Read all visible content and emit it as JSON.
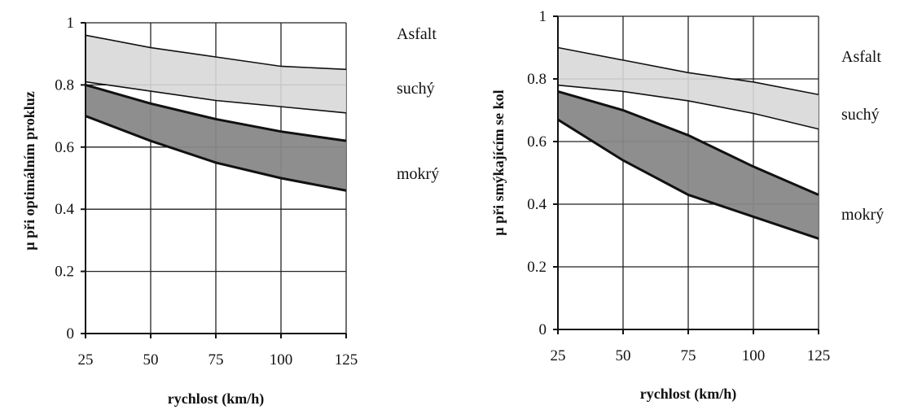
{
  "chart_data": [
    {
      "type": "area",
      "title": "",
      "xlabel": "rychlost  (km/h)",
      "ylabel": "µ  při optimálním prokluz",
      "xlim": [
        25,
        125
      ],
      "ylim": [
        0,
        1
      ],
      "x_ticks": [
        "25",
        "50",
        "75",
        "100",
        "125"
      ],
      "y_ticks": [
        "0",
        "0.2",
        "0.4",
        "0.6",
        "0.8",
        "1"
      ],
      "grid": true,
      "labels": {
        "surface": "Asfalt",
        "dry": "suchý",
        "wet": "mokrý"
      },
      "x": [
        25,
        50,
        75,
        100,
        125
      ],
      "bands": [
        {
          "name": "suchý",
          "color": "#d8d8d8",
          "upper": [
            0.96,
            0.92,
            0.89,
            0.86,
            0.85
          ],
          "lower": [
            0.81,
            0.78,
            0.75,
            0.73,
            0.71
          ]
        },
        {
          "name": "mokrý",
          "color": "#888888",
          "upper": [
            0.8,
            0.74,
            0.69,
            0.65,
            0.62
          ],
          "lower": [
            0.7,
            0.62,
            0.55,
            0.5,
            0.46
          ]
        }
      ]
    },
    {
      "type": "area",
      "title": "",
      "xlabel": "rychlost  (km/h)",
      "ylabel": "µ  při smýkajícím se kol",
      "xlim": [
        25,
        125
      ],
      "ylim": [
        0,
        1
      ],
      "x_ticks": [
        "25",
        "50",
        "75",
        "100",
        "125"
      ],
      "y_ticks": [
        "0",
        "0.2",
        "0.4",
        "0.6",
        "0.8",
        "1"
      ],
      "grid": true,
      "labels": {
        "surface": "Asfalt",
        "dry": "suchý",
        "wet": "mokrý"
      },
      "x": [
        25,
        50,
        75,
        100,
        125
      ],
      "bands": [
        {
          "name": "suchý",
          "color": "#d8d8d8",
          "upper": [
            0.9,
            0.86,
            0.82,
            0.79,
            0.75
          ],
          "lower": [
            0.78,
            0.76,
            0.73,
            0.69,
            0.64
          ]
        },
        {
          "name": "mokrý",
          "color": "#888888",
          "upper": [
            0.76,
            0.7,
            0.62,
            0.52,
            0.43
          ],
          "lower": [
            0.67,
            0.54,
            0.43,
            0.36,
            0.29
          ]
        }
      ]
    }
  ]
}
